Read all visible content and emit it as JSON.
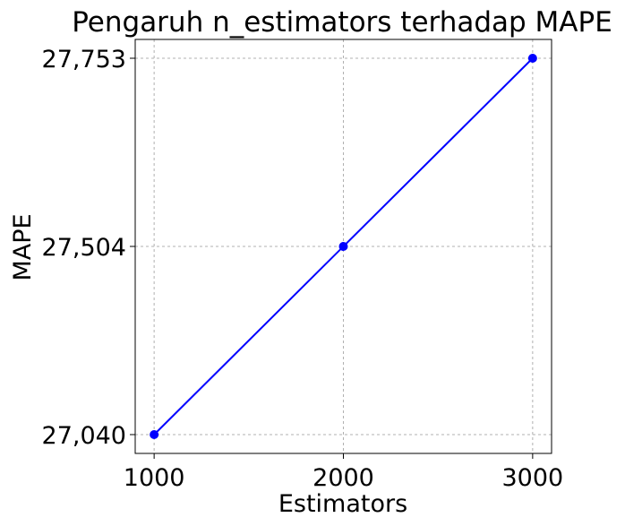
{
  "chart_data": {
    "type": "line",
    "title": "Pengaruh n_estimators terhadap MAPE",
    "xlabel": "Estimators",
    "ylabel": "MAPE",
    "x": [
      1000,
      2000,
      3000
    ],
    "y_tick_labels": [
      "27,040",
      "27,504",
      "27,753"
    ],
    "x_tick_labels": [
      "1000",
      "2000",
      "3000"
    ],
    "series": [
      {
        "x": [
          1000,
          2000,
          3000
        ],
        "y_labels": [
          "27,040",
          "27,504",
          "27,753"
        ],
        "y_level": [
          0,
          1,
          2
        ]
      }
    ],
    "xlim": [
      900,
      3100
    ],
    "grid": true,
    "y_axis_note": "categorical (evenly spaced ticks)",
    "colors": {
      "line": "#0000ff",
      "grid": "#b0b0b0",
      "axes": "#000000"
    },
    "marker": "circle"
  }
}
